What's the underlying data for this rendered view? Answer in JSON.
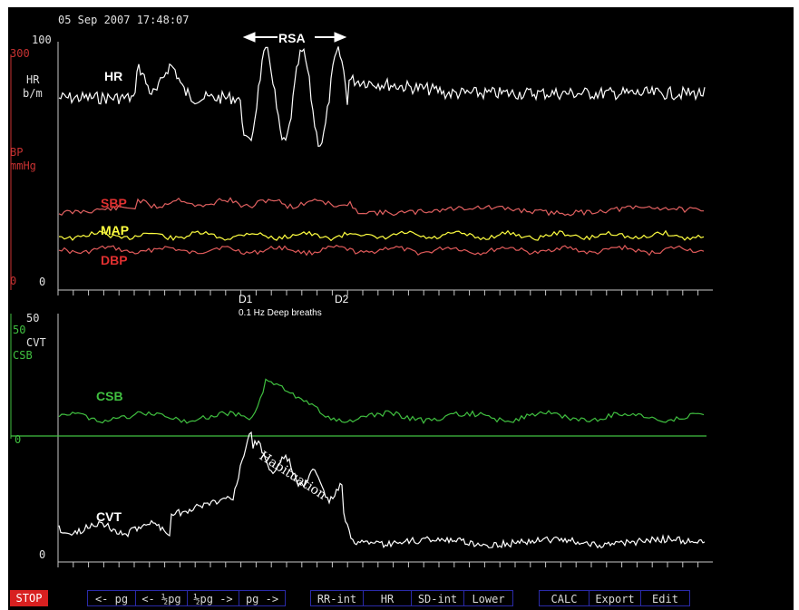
{
  "timestamp": "05 Sep 2007 17:48:07",
  "colors": {
    "hr": "#ffffff",
    "bp_axis": "#c83232",
    "sbp": "#e06060",
    "map": "#ffff40",
    "dbp": "#e05a5a",
    "csb": "#40c040",
    "cvt": "#ffffff",
    "toolbar_border": "#2a2aa8",
    "stop": "#d82020"
  },
  "top_panel": {
    "hr_axis": {
      "top_label": "100",
      "unit_line1": "HR",
      "unit_line2": "b/m"
    },
    "bp_axis": {
      "top_label": "300",
      "unit_line1": "BP",
      "unit_line2": "mmHg",
      "bottom_label": "0"
    },
    "zero_label": "0",
    "annotation": "RSA",
    "traces": {
      "hr": "HR",
      "sbp": "SBP",
      "map": "MAP",
      "dbp": "DBP"
    },
    "markers": [
      {
        "label": "D1"
      },
      {
        "label": "D2"
      }
    ],
    "marker_caption": "0.1 Hz Deep breaths"
  },
  "bottom_panel": {
    "cvt_axis": {
      "top_label": "50",
      "unit_line": "CVT",
      "bottom_label": "0"
    },
    "csb_axis": {
      "top_label": "50",
      "unit_line": "CSB",
      "zero_label": "0"
    },
    "annotation": "Habituation",
    "traces": {
      "csb": "CSB",
      "cvt": "CVT"
    }
  },
  "toolbar": {
    "stop": "STOP",
    "nav": [
      "<- pg",
      "<- ½pg",
      "½pg ->",
      "pg ->"
    ],
    "metrics": [
      "RR-int",
      "HR",
      "SD-int",
      "Lower"
    ],
    "actions": [
      "CALC",
      "Export",
      "Edit"
    ]
  }
}
